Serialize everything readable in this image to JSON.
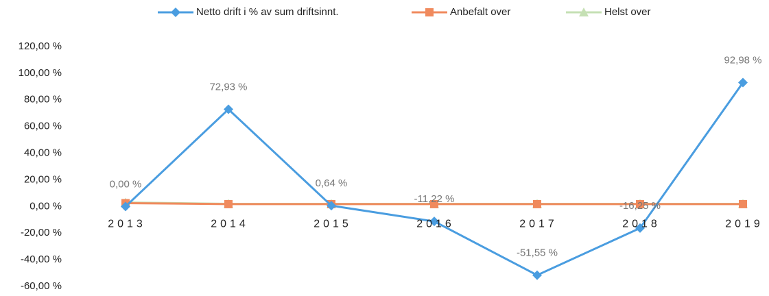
{
  "chart_data": {
    "type": "line",
    "categories": [
      "2013",
      "2014",
      "2015",
      "2016",
      "2017",
      "2018",
      "2019"
    ],
    "series": [
      {
        "name": "Netto drift i % av sum driftsinnt.",
        "color": "#4a9de0",
        "marker": "diamond",
        "values": [
          0,
          72.93,
          0.64,
          -11.22,
          -51.55,
          -16.25,
          92.98
        ],
        "value_labels": [
          "0,00 %",
          "72,93 %",
          "0,64 %",
          "-11,22 %",
          "-51,55 %",
          "-16,25 %",
          "92,98 %"
        ]
      },
      {
        "name": "Anbefalt over",
        "color": "#f08a5d",
        "marker": "square",
        "values": [
          2.5,
          1.75,
          1.75,
          1.75,
          1.75,
          1.75,
          1.75
        ]
      },
      {
        "name": "Helst over",
        "color": "#c5e0b4",
        "marker": "triangle",
        "values": [
          3,
          2,
          2,
          2,
          2,
          2,
          2
        ]
      }
    ],
    "ylim": [
      -60,
      120
    ],
    "yticks": [
      {
        "value": -60,
        "label": "-60,00 %"
      },
      {
        "value": -40,
        "label": "-40,00 %"
      },
      {
        "value": -20,
        "label": "-20,00 %"
      },
      {
        "value": 0,
        "label": "0,00 %"
      },
      {
        "value": 20,
        "label": "20,00 %"
      },
      {
        "value": 40,
        "label": "40,00 %"
      },
      {
        "value": 60,
        "label": "60,00 %"
      },
      {
        "value": 80,
        "label": "80,00 %"
      },
      {
        "value": 100,
        "label": "100,00 %"
      },
      {
        "value": 120,
        "label": "120,00 %"
      }
    ],
    "legend": "top",
    "grid": false
  }
}
